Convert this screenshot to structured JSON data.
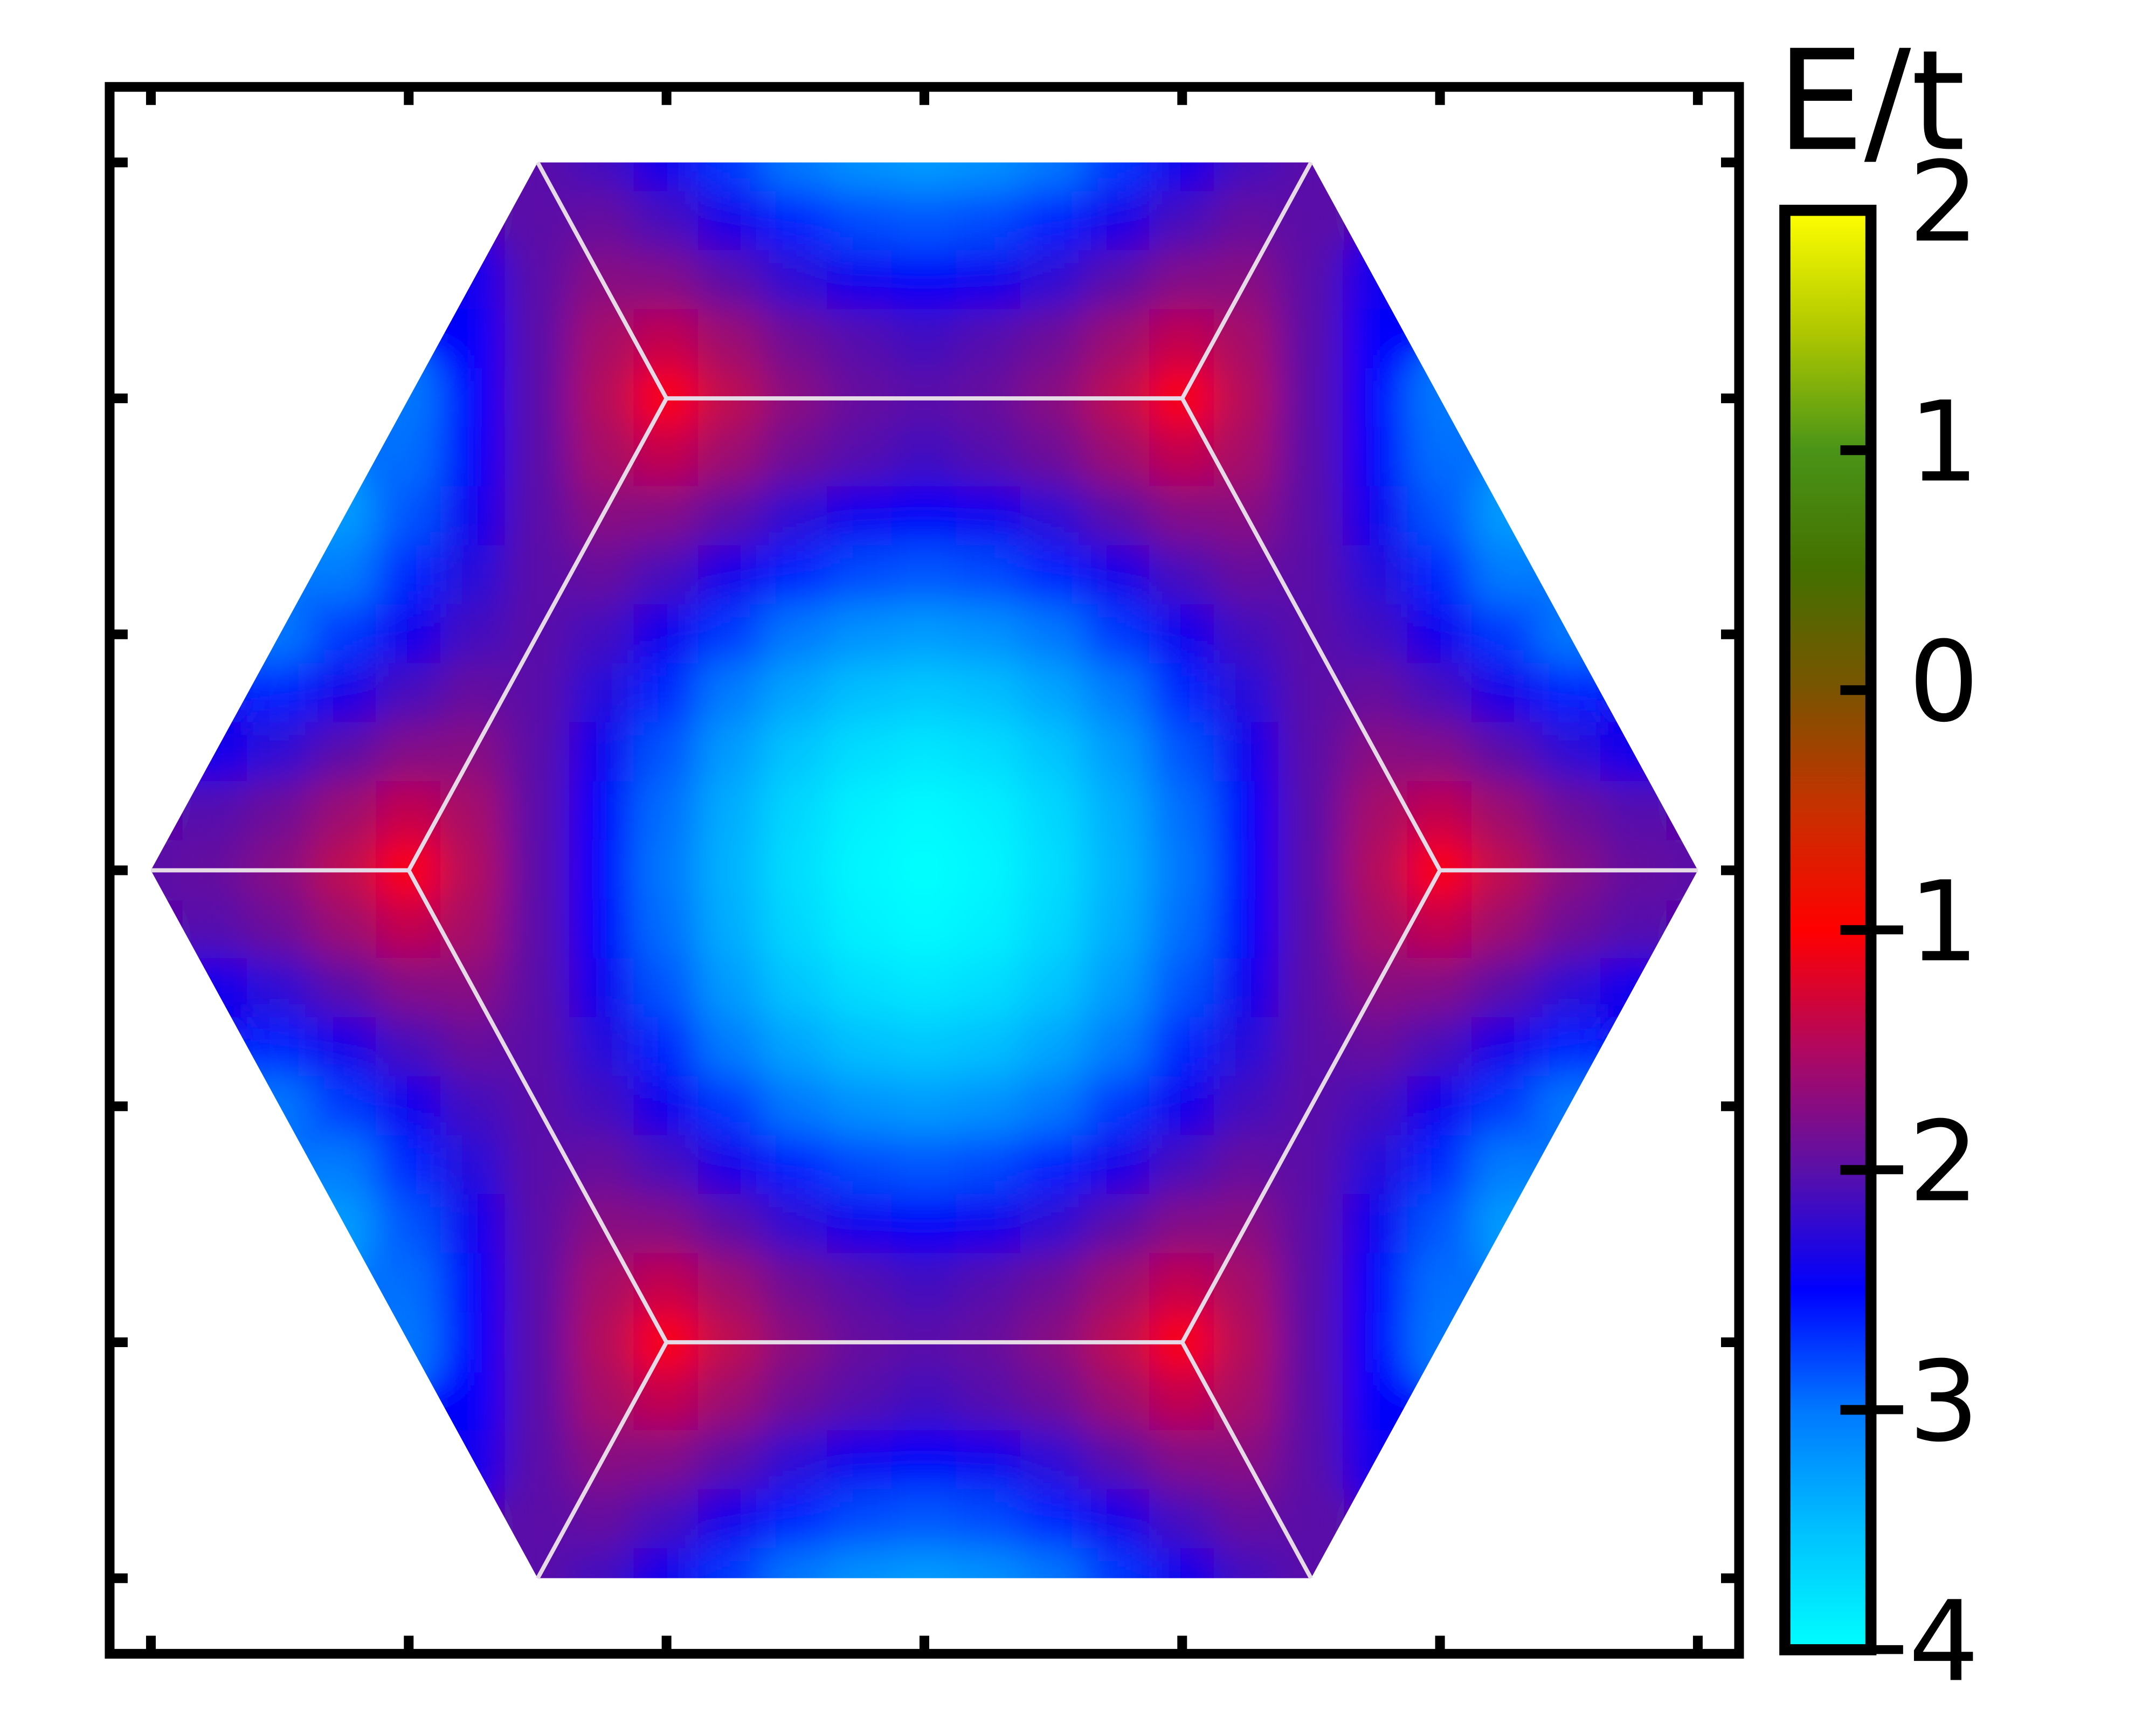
{
  "chart_data": {
    "type": "heatmap",
    "x": [
      -3,
      -2.75,
      -2.5,
      -2.25,
      -2,
      -1.75,
      -1.5,
      -1.25,
      -1,
      -0.75,
      -0.5,
      -0.25,
      0,
      0.25,
      0.5,
      0.75,
      1,
      1.25,
      1.5,
      1.75,
      2,
      2.25,
      2.5,
      2.75,
      3
    ],
    "y": [
      3,
      2.75,
      2.5,
      2.25,
      2,
      1.75,
      1.5,
      1.25,
      1,
      0.75,
      0.5,
      0.25,
      0,
      -0.25,
      -0.5,
      -0.75,
      -1,
      -1.25,
      -1.5,
      -1.75,
      -2,
      -2.25,
      -2.5,
      -2.75,
      -3
    ],
    "values": [
      [
        null,
        null,
        null,
        null,
        null,
        null,
        -2,
        -2.13,
        -2.41,
        -2.73,
        -3,
        -3.18,
        -3.24,
        -3.18,
        -3,
        -2.73,
        -2.41,
        -2.13,
        -2,
        null,
        null,
        null,
        null,
        null,
        null
      ],
      [
        null,
        null,
        null,
        null,
        null,
        null,
        -2,
        -1.93,
        -2.11,
        -2.38,
        -2.64,
        -2.8,
        -2.86,
        -2.8,
        -2.64,
        -2.38,
        -2.11,
        -1.93,
        -2,
        null,
        null,
        null,
        null,
        null,
        null
      ],
      [
        null,
        null,
        null,
        null,
        null,
        -2.41,
        -2,
        -1.73,
        -1.77,
        -2,
        -2.25,
        -2.41,
        -2.47,
        -2.41,
        -2.25,
        -2,
        -1.77,
        -1.73,
        -2,
        -2.41,
        null,
        null,
        null,
        null,
        null
      ],
      [
        null,
        null,
        null,
        null,
        null,
        -2.49,
        -2,
        -1.56,
        -1.39,
        -1.62,
        -1.89,
        -2.03,
        -2.14,
        -2.03,
        -1.89,
        -1.62,
        -1.39,
        -1.56,
        -2,
        -2.49,
        null,
        null,
        null,
        null,
        null
      ],
      [
        null,
        null,
        null,
        null,
        -3,
        -2.52,
        -2,
        -1.48,
        -1,
        -1.41,
        -1.73,
        -1.93,
        -2,
        -1.93,
        -1.73,
        -1.41,
        -1,
        -1.48,
        -2,
        -2.52,
        -3,
        null,
        null,
        null,
        null
      ],
      [
        null,
        null,
        null,
        null,
        -2.96,
        -2.49,
        -2,
        -1.56,
        -1.39,
        -1.62,
        -1.89,
        -2.03,
        -2.14,
        -2.03,
        -1.89,
        -1.62,
        -1.39,
        -1.56,
        -2,
        -2.49,
        -2.96,
        null,
        null,
        null,
        null
      ],
      [
        null,
        null,
        null,
        -3.24,
        -2.85,
        -2.41,
        -2,
        -1.73,
        -1.77,
        -2,
        -2.25,
        -2.41,
        -2.47,
        -2.41,
        -2.25,
        -2,
        -1.77,
        -1.73,
        -2,
        -2.41,
        -2.85,
        -3.24,
        null,
        null,
        null
      ],
      [
        null,
        null,
        null,
        -3.02,
        -2.66,
        -2.29,
        -2,
        -1.93,
        -2.11,
        -2.38,
        -2.64,
        -2.8,
        -2.86,
        -2.8,
        -2.64,
        -2.38,
        -2.11,
        -1.93,
        -2,
        -2.29,
        -2.66,
        -3.02,
        null,
        null,
        null
      ],
      [
        null,
        null,
        -3,
        -2.73,
        -2.41,
        -2.13,
        -2,
        -2.13,
        -2.41,
        -2.73,
        -3,
        -3.18,
        -3.24,
        -3.18,
        -3,
        -2.73,
        -2.41,
        -2.13,
        -2,
        -2.13,
        -2.41,
        -2.73,
        -3,
        null,
        null
      ],
      [
        null,
        null,
        -2.64,
        -2.38,
        -2.11,
        -1.93,
        -2,
        -2.29,
        -2.66,
        -3.02,
        -3.31,
        -3.49,
        -3.56,
        -3.49,
        -3.31,
        -3.02,
        -2.66,
        -2.29,
        -2,
        -1.93,
        -2.11,
        -2.38,
        -2.64,
        null,
        null
      ],
      [
        null,
        -2.41,
        -2.25,
        -2,
        -1.77,
        -1.73,
        -2,
        -2.41,
        -2.85,
        -3.24,
        -3.54,
        -3.73,
        -3.8,
        -3.73,
        -3.54,
        -3.24,
        -2.85,
        -2.41,
        -2,
        -1.73,
        -1.77,
        -2,
        -2.25,
        -2.41,
        null
      ],
      [
        null,
        -2.03,
        -1.89,
        -1.62,
        -1.39,
        -1.56,
        -2,
        -2.49,
        -2.96,
        -3.37,
        -3.68,
        -3.88,
        -3.95,
        -3.88,
        -3.68,
        -3.37,
        -2.96,
        -2.49,
        -2,
        -1.56,
        -1.39,
        -1.62,
        -1.89,
        -2.03,
        null
      ],
      [
        -2,
        -1.93,
        -1.73,
        -1.41,
        -1,
        -1.48,
        -2,
        -2.52,
        -3,
        -3.41,
        -3.73,
        -3.93,
        -4,
        -3.93,
        -3.73,
        -3.41,
        -3,
        -2.52,
        -2,
        -1.48,
        -1,
        -1.41,
        -1.73,
        -1.93,
        -2
      ],
      [
        null,
        -2.03,
        -1.89,
        -1.62,
        -1.39,
        -1.56,
        -2,
        -2.49,
        -2.96,
        -3.37,
        -3.68,
        -3.88,
        -3.95,
        -3.88,
        -3.68,
        -3.37,
        -2.96,
        -2.49,
        -2,
        -1.56,
        -1.39,
        -1.62,
        -1.89,
        -2.03,
        null
      ],
      [
        null,
        -2.41,
        -2.25,
        -2,
        -1.77,
        -1.73,
        -2,
        -2.41,
        -2.85,
        -3.24,
        -3.54,
        -3.73,
        -3.8,
        -3.73,
        -3.54,
        -3.24,
        -2.85,
        -2.41,
        -2,
        -1.73,
        -1.77,
        -2,
        -2.25,
        -2.41,
        null
      ],
      [
        null,
        null,
        -2.64,
        -2.38,
        -2.11,
        -1.93,
        -2,
        -2.29,
        -2.66,
        -3.02,
        -3.31,
        -3.49,
        -3.56,
        -3.49,
        -3.31,
        -3.02,
        -2.66,
        -2.29,
        -2,
        -1.93,
        -2.11,
        -2.38,
        -2.64,
        null,
        null
      ],
      [
        null,
        null,
        -3,
        -2.73,
        -2.41,
        -2.13,
        -2,
        -2.13,
        -2.41,
        -2.73,
        -3,
        -3.18,
        -3.24,
        -3.18,
        -3,
        -2.73,
        -2.41,
        -2.13,
        -2,
        -2.13,
        -2.41,
        -2.73,
        -3,
        null,
        null
      ],
      [
        null,
        null,
        null,
        -3.02,
        -2.66,
        -2.29,
        -2,
        -1.93,
        -2.11,
        -2.38,
        -2.64,
        -2.8,
        -2.86,
        -2.8,
        -2.64,
        -2.38,
        -2.11,
        -1.93,
        -2,
        -2.29,
        -2.66,
        -3.02,
        null,
        null,
        null
      ],
      [
        null,
        null,
        null,
        -3.24,
        -2.85,
        -2.41,
        -2,
        -1.73,
        -1.77,
        -2,
        -2.25,
        -2.41,
        -2.47,
        -2.41,
        -2.25,
        -2,
        -1.77,
        -1.73,
        -2,
        -2.41,
        -2.85,
        -3.24,
        null,
        null,
        null
      ],
      [
        null,
        null,
        null,
        null,
        -2.96,
        -2.49,
        -2,
        -1.56,
        -1.39,
        -1.62,
        -1.89,
        -2.03,
        -2.14,
        -2.03,
        -1.89,
        -1.62,
        -1.39,
        -1.56,
        -2,
        -2.49,
        -2.96,
        null,
        null,
        null,
        null
      ],
      [
        null,
        null,
        null,
        null,
        -3,
        -2.52,
        -2,
        -1.48,
        -1,
        -1.41,
        -1.73,
        -1.93,
        -2,
        -1.93,
        -1.73,
        -1.41,
        -1,
        -1.48,
        -2,
        -2.52,
        -3,
        null,
        null,
        null,
        null
      ],
      [
        null,
        null,
        null,
        null,
        null,
        -2.49,
        -2,
        -1.56,
        -1.39,
        -1.62,
        -1.89,
        -2.03,
        -2.14,
        -2.03,
        -1.89,
        -1.62,
        -1.39,
        -1.56,
        -2,
        -2.49,
        null,
        null,
        null,
        null,
        null
      ],
      [
        null,
        null,
        null,
        null,
        null,
        -2.41,
        -2,
        -1.73,
        -1.77,
        -2,
        -2.25,
        -2.41,
        -2.47,
        -2.41,
        -2.25,
        -2,
        -1.77,
        -1.73,
        -2,
        -2.41,
        null,
        null,
        null,
        null,
        null
      ],
      [
        null,
        null,
        null,
        null,
        null,
        null,
        -2,
        -1.93,
        -2.11,
        -2.38,
        -2.64,
        -2.8,
        -2.86,
        -2.8,
        -2.64,
        -2.38,
        -2.11,
        -1.93,
        -2,
        null,
        null,
        null,
        null,
        null,
        null
      ],
      [
        null,
        null,
        null,
        null,
        null,
        null,
        -2,
        -2.13,
        -2.41,
        -2.73,
        -3,
        -3.18,
        -3.24,
        -3.18,
        -3,
        -2.73,
        -2.41,
        -2.13,
        -2,
        null,
        null,
        null,
        null,
        null,
        null
      ]
    ],
    "xlim": [
      -3.16,
      3.16
    ],
    "ylim": [
      -3.32,
      3.32
    ],
    "xticks": [
      -3,
      -2,
      -1,
      0,
      1,
      2,
      3
    ],
    "yticks": [
      -3,
      -2,
      -1,
      0,
      1,
      2,
      3
    ],
    "colorbar": {
      "label": "E/t",
      "zlim": [
        -4,
        2
      ],
      "zticks": [
        -4,
        -3,
        -2,
        -1,
        0,
        1,
        2
      ]
    },
    "colormap": [
      "#00ffff",
      "#00c0ff",
      "#0078ff",
      "#0000ff",
      "#5a10a8",
      "#b00860",
      "#ff0000",
      "#c83000",
      "#7a5400",
      "#447000",
      "#4a9418",
      "#b0c800",
      "#ffff00"
    ]
  }
}
